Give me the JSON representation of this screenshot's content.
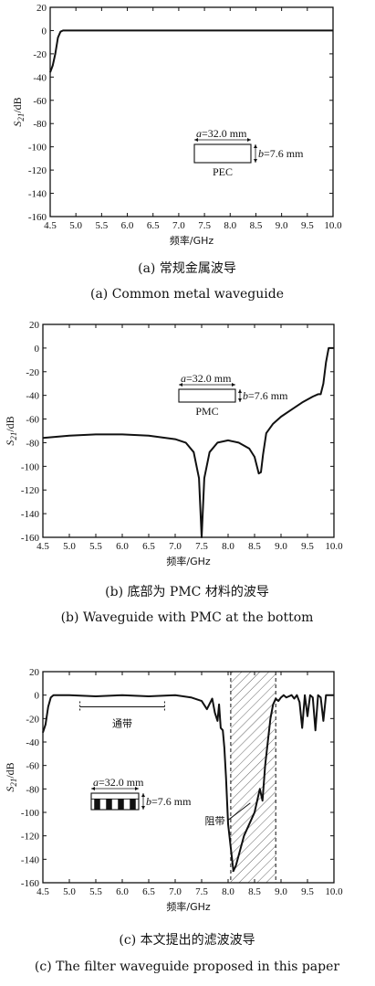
{
  "chart_data": [
    {
      "type": "line",
      "xlabel": "频率/GHz",
      "ylabel": "S21/dB",
      "xlim": [
        4.5,
        10.0
      ],
      "ylim": [
        -160,
        20
      ],
      "xticks": [
        "4.5",
        "5.0",
        "5.5",
        "6.0",
        "6.5",
        "7.0",
        "7.5",
        "8.0",
        "8.5",
        "9.0",
        "9.5",
        "10.0"
      ],
      "yticks": [
        "20",
        "0",
        "-20",
        "-40",
        "-60",
        "-80",
        "-100",
        "-120",
        "-140",
        "-160"
      ],
      "series": [
        {
          "x": [
            4.5,
            4.55,
            4.6,
            4.65,
            4.7,
            4.75,
            4.8,
            5.0,
            5.5,
            6.0,
            7.0,
            8.0,
            9.0,
            10.0
          ],
          "y": [
            -36,
            -30,
            -20,
            -6,
            -1,
            0,
            0,
            0,
            0,
            0,
            0,
            0,
            0,
            0
          ]
        }
      ],
      "inset": {
        "a": "a=32.0 mm",
        "b": "b=7.6 mm",
        "label": "PEC"
      },
      "caption_cn": "(a) 常规金属波导",
      "caption_en": "(a) Common metal waveguide"
    },
    {
      "type": "line",
      "xlabel": "频率/GHz",
      "ylabel": "S21/dB",
      "xlim": [
        4.5,
        10.0
      ],
      "ylim": [
        -160,
        20
      ],
      "xticks": [
        "4.5",
        "5.0",
        "5.5",
        "6.0",
        "6.5",
        "7.0",
        "7.5",
        "8.0",
        "8.5",
        "9.0",
        "9.5",
        "10.0"
      ],
      "yticks": [
        "20",
        "0",
        "-20",
        "-40",
        "-60",
        "-80",
        "-100",
        "-120",
        "-140",
        "-160"
      ],
      "series": [
        {
          "x": [
            4.5,
            5.0,
            5.5,
            6.0,
            6.5,
            7.0,
            7.2,
            7.35,
            7.45,
            7.5,
            7.55,
            7.65,
            7.8,
            8.0,
            8.2,
            8.4,
            8.5,
            8.58,
            8.62,
            8.66,
            8.72,
            8.85,
            9.0,
            9.2,
            9.4,
            9.6,
            9.7,
            9.75,
            9.8,
            9.85,
            9.9,
            10.0
          ],
          "y": [
            -76,
            -74,
            -73,
            -73,
            -74,
            -77,
            -80,
            -88,
            -110,
            -160,
            -110,
            -88,
            -80,
            -78,
            -80,
            -85,
            -92,
            -106,
            -105,
            -90,
            -72,
            -64,
            -58,
            -52,
            -46,
            -41,
            -39,
            -39,
            -30,
            -12,
            0,
            0
          ]
        }
      ],
      "inset": {
        "a": "a=32.0 mm",
        "b": "b=7.6 mm",
        "label": "PMC"
      },
      "caption_cn": "(b) 底部为 PMC 材料的波导",
      "caption_en": "(b) Waveguide with PMC at the bottom"
    },
    {
      "type": "line",
      "xlabel": "频率/GHz",
      "ylabel": "S21/dB",
      "xlim": [
        4.5,
        10.0
      ],
      "ylim": [
        -160,
        20
      ],
      "xticks": [
        "4.5",
        "5.0",
        "5.5",
        "6.0",
        "6.5",
        "7.0",
        "7.5",
        "8.0",
        "8.5",
        "9.0",
        "9.5",
        "10.0"
      ],
      "yticks": [
        "20",
        "0",
        "-20",
        "-40",
        "-60",
        "-80",
        "-100",
        "-120",
        "-140",
        "-160"
      ],
      "series": [
        {
          "x": [
            4.5,
            4.55,
            4.6,
            4.65,
            4.7,
            4.8,
            5.0,
            5.5,
            6.0,
            6.5,
            7.0,
            7.3,
            7.5,
            7.6,
            7.7,
            7.75,
            7.8,
            7.83,
            7.86,
            7.9,
            7.93,
            7.96,
            8.0,
            8.05,
            8.1,
            8.15,
            8.3,
            8.5,
            8.6,
            8.65,
            8.7,
            8.75,
            8.8,
            8.85,
            8.9,
            8.95,
            9.0,
            9.05,
            9.1,
            9.15,
            9.2,
            9.25,
            9.3,
            9.35,
            9.4,
            9.45,
            9.5,
            9.55,
            9.6,
            9.65,
            9.7,
            9.75,
            9.8,
            9.85,
            9.9,
            10.0
          ],
          "y": [
            -32,
            -25,
            -10,
            -2,
            0,
            0,
            0,
            -1,
            0,
            -1,
            0,
            -2,
            -5,
            -12,
            -3,
            -15,
            -22,
            -8,
            -28,
            -30,
            -45,
            -70,
            -110,
            -130,
            -150,
            -145,
            -120,
            -100,
            -80,
            -90,
            -60,
            -40,
            -20,
            -8,
            -3,
            -5,
            -2,
            0,
            -2,
            -1,
            0,
            -3,
            0,
            -6,
            -28,
            0,
            -18,
            0,
            -2,
            -30,
            0,
            -2,
            -22,
            0,
            0,
            0
          ]
        }
      ],
      "inset": {
        "a": "a=32.0 mm",
        "b": "b=7.6 mm"
      },
      "passband_label": "通带",
      "passband": [
        5.2,
        6.8
      ],
      "stopband_label": "阻带",
      "stopband": [
        8.05,
        8.9
      ],
      "caption_cn": "(c) 本文提出的滤波波导",
      "caption_en": "(c) The filter waveguide proposed in this paper"
    }
  ]
}
